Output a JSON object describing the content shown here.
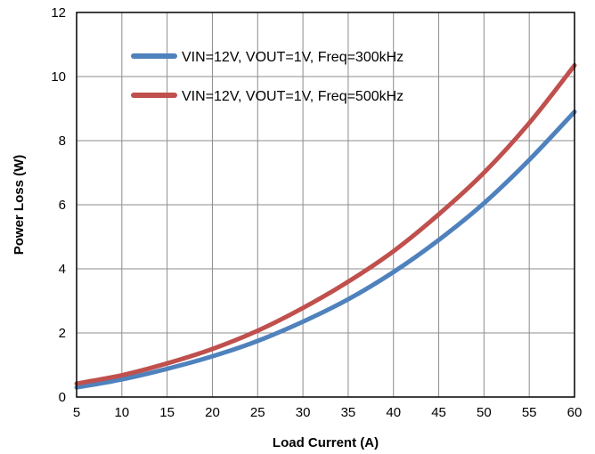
{
  "chart_data": {
    "type": "line",
    "title": "",
    "xlabel": "Load Current (A)",
    "ylabel": "Power Loss (W)",
    "xlim": [
      5,
      60
    ],
    "ylim": [
      0,
      12
    ],
    "xticks": [
      5,
      10,
      15,
      20,
      25,
      30,
      35,
      40,
      45,
      50,
      55,
      60
    ],
    "yticks": [
      0,
      2,
      4,
      6,
      8,
      10,
      12
    ],
    "grid": true,
    "legend_position": "top-left",
    "series": [
      {
        "name": "VIN=12V, VOUT=1V, Freq=300kHz",
        "color": "#4f81bd",
        "x": [
          5,
          10,
          15,
          20,
          25,
          30,
          35,
          40,
          45,
          50,
          55,
          60
        ],
        "y": [
          0.3,
          0.55,
          0.88,
          1.27,
          1.75,
          2.35,
          3.05,
          3.9,
          4.9,
          6.05,
          7.4,
          8.9
        ]
      },
      {
        "name": "VIN=12V, VOUT=1V, Freq=500kHz",
        "color": "#c0504d",
        "x": [
          5,
          10,
          15,
          20,
          25,
          30,
          35,
          40,
          45,
          50,
          55,
          60
        ],
        "y": [
          0.42,
          0.68,
          1.05,
          1.5,
          2.07,
          2.78,
          3.6,
          4.55,
          5.7,
          7.0,
          8.55,
          10.35
        ]
      }
    ]
  }
}
